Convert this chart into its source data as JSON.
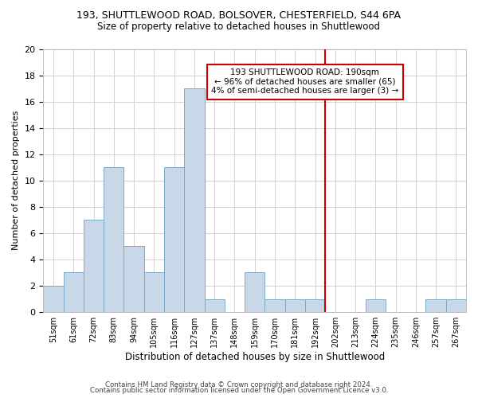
{
  "title_line1": "193, SHUTTLEWOOD ROAD, BOLSOVER, CHESTERFIELD, S44 6PA",
  "title_line2": "Size of property relative to detached houses in Shuttlewood",
  "xlabel": "Distribution of detached houses by size in Shuttlewood",
  "ylabel": "Number of detached properties",
  "bin_labels": [
    "51sqm",
    "61sqm",
    "72sqm",
    "83sqm",
    "94sqm",
    "105sqm",
    "116sqm",
    "127sqm",
    "137sqm",
    "148sqm",
    "159sqm",
    "170sqm",
    "181sqm",
    "192sqm",
    "202sqm",
    "213sqm",
    "224sqm",
    "235sqm",
    "246sqm",
    "257sqm",
    "267sqm"
  ],
  "bar_values": [
    2,
    3,
    7,
    11,
    5,
    3,
    11,
    17,
    1,
    0,
    3,
    1,
    1,
    1,
    0,
    0,
    1,
    0,
    0,
    1,
    1
  ],
  "bar_color": "#c8d8e8",
  "bar_edge_color": "#7aaac8",
  "vline_x": 13.5,
  "vline_color": "#cc0000",
  "annotation_text": "193 SHUTTLEWOOD ROAD: 190sqm\n← 96% of detached houses are smaller (65)\n4% of semi-detached houses are larger (3) →",
  "annotation_box_color": "#cc0000",
  "ylim": [
    0,
    20
  ],
  "yticks": [
    0,
    2,
    4,
    6,
    8,
    10,
    12,
    14,
    16,
    18,
    20
  ],
  "footer_line1": "Contains HM Land Registry data © Crown copyright and database right 2024.",
  "footer_line2": "Contains public sector information licensed under the Open Government Licence v3.0.",
  "background_color": "#ffffff",
  "grid_color": "#cccccc"
}
